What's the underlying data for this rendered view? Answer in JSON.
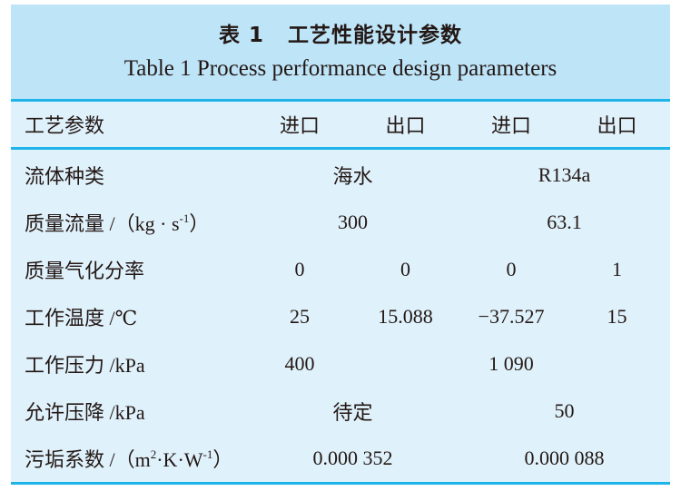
{
  "caption": {
    "cn_number": "表 1",
    "cn_title": "工艺性能设计参数",
    "en_title": "Table 1  Process performance design parameters"
  },
  "header": [
    "工艺参数",
    "进口",
    "出口",
    "进口",
    "出口"
  ],
  "rows": {
    "fluid": {
      "label": "流体种类",
      "side1": "海水",
      "side2": "R134a"
    },
    "mass_flow": {
      "label_pre": "质量流量 /（kg · s",
      "label_sup": "-1",
      "label_post": "）",
      "side1": "300",
      "side2": "63.1"
    },
    "vapor_fraction": {
      "label": "质量气化分率",
      "values": [
        "0",
        "0",
        "0",
        "1"
      ]
    },
    "temperature": {
      "label": "工作温度 /℃",
      "values": [
        "25",
        "15.088",
        "−37.527",
        "15"
      ]
    },
    "pressure": {
      "label": "工作压力 /kPa",
      "side1_in": "400",
      "side2_in": "1 090"
    },
    "pressure_drop": {
      "label": "允许压降 /kPa",
      "side1": "待定",
      "side2": "50"
    },
    "fouling": {
      "label_pre": "污垢系数 /（m",
      "label_sup1": "2",
      "label_mid": "·K·W",
      "label_sup2": "-1",
      "label_post": "）",
      "side1": "0.000 352",
      "side2": "0.000 088"
    }
  },
  "colors": {
    "title_bg": "#bee4f8",
    "body_bg": "#dff1fb",
    "rule": "#1eb4e9"
  }
}
